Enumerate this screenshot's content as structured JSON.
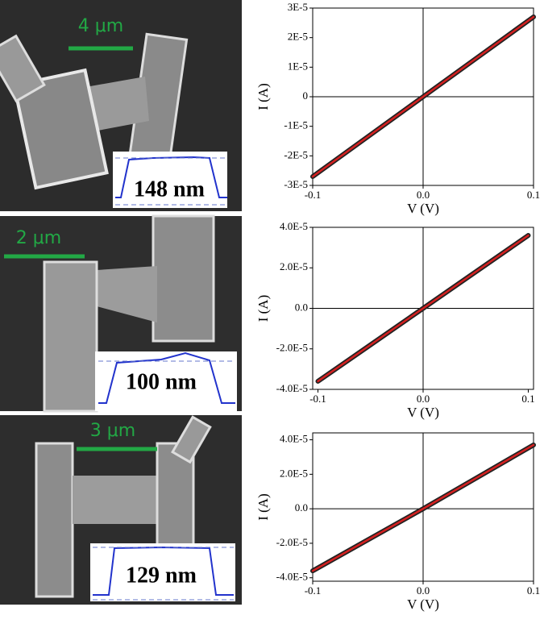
{
  "images": [
    {
      "scale_bar": "4 μm",
      "thickness": "148 nm"
    },
    {
      "scale_bar": "2 μm",
      "thickness": "100 nm"
    },
    {
      "scale_bar": "3 μm",
      "thickness": "129 nm"
    }
  ],
  "chart_data": [
    {
      "type": "line",
      "x_label": "V (V)",
      "y_label": "I (A)",
      "x": [
        -0.1,
        -0.05,
        0,
        0.05,
        0.1
      ],
      "series": [
        {
          "color": "#222222",
          "values": [
            -2.7e-05,
            -1.35e-05,
            0,
            1.35e-05,
            2.7e-05
          ]
        },
        {
          "color": "#d42020",
          "values": [
            -2.7e-05,
            -1.35e-05,
            0,
            1.35e-05,
            2.7e-05
          ]
        }
      ],
      "xlim": [
        -0.1,
        0.1
      ],
      "xticks": [
        -0.1,
        {
          "value": 0,
          "label": "0.0"
        },
        0.1
      ],
      "ylim": [
        -3e-05,
        3e-05
      ],
      "yticks": [
        {
          "value": 3e-05,
          "label": "3E-5"
        },
        {
          "value": 2e-05,
          "label": "2E-5"
        },
        {
          "value": 1e-05,
          "label": "1E-5"
        },
        0,
        {
          "value": -1e-05,
          "label": "-1E-5"
        },
        {
          "value": -2e-05,
          "label": "-2E-5"
        },
        {
          "value": -3e-05,
          "label": "-3E-5"
        }
      ]
    },
    {
      "type": "line",
      "x_label": "V (V)",
      "y_label": "I (A)",
      "x": [
        -0.1,
        -0.05,
        0,
        0.05,
        0.1
      ],
      "series": [
        {
          "color": "#222222",
          "values": [
            -3.6e-05,
            -1.8e-05,
            0,
            1.8e-05,
            3.6e-05
          ]
        },
        {
          "color": "#d42020",
          "values": [
            -3.6e-05,
            -1.8e-05,
            0,
            1.8e-05,
            3.6e-05
          ]
        }
      ],
      "xlim": [
        -0.105,
        0.105
      ],
      "xticks": [
        -0.1,
        {
          "value": 0,
          "label": "0.0"
        },
        0.1
      ],
      "ylim": [
        -4e-05,
        4e-05
      ],
      "yticks": [
        {
          "value": 4e-05,
          "label": "4.0E-5"
        },
        {
          "value": 2e-05,
          "label": "2.0E-5"
        },
        {
          "value": 0,
          "label": "0.0"
        },
        {
          "value": -2e-05,
          "label": "-2.0E-5"
        },
        {
          "value": -4e-05,
          "label": "-4.0E-5"
        }
      ]
    },
    {
      "type": "line",
      "x_label": "V (V)",
      "y_label": "I (A)",
      "x": [
        -0.1,
        -0.05,
        0,
        0.05,
        0.1
      ],
      "series": [
        {
          "color": "#222222",
          "values": [
            -3.6e-05,
            -1.8e-05,
            0,
            1.85e-05,
            3.7e-05
          ]
        },
        {
          "color": "#d42020",
          "values": [
            -3.6e-05,
            -1.8e-05,
            0,
            1.85e-05,
            3.7e-05
          ]
        }
      ],
      "xlim": [
        -0.1,
        0.1
      ],
      "xticks": [
        -0.1,
        {
          "value": 0,
          "label": "0.0"
        },
        0.1
      ],
      "ylim": [
        -4.2e-05,
        4.4e-05
      ],
      "yticks": [
        {
          "value": 4e-05,
          "label": "4.0E-5"
        },
        {
          "value": 2e-05,
          "label": "2.0E-5"
        },
        {
          "value": 0,
          "label": "0.0"
        },
        {
          "value": -2e-05,
          "label": "-2.0E-5"
        },
        {
          "value": -4e-05,
          "label": "-4.0E-5"
        }
      ]
    }
  ]
}
